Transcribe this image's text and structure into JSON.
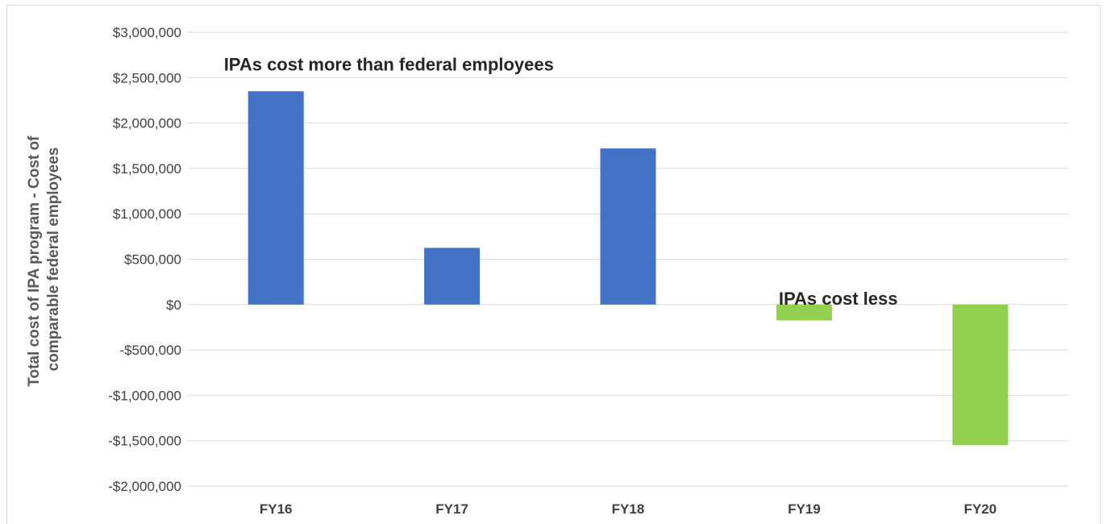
{
  "chart_data": {
    "type": "bar",
    "categories": [
      "FY16",
      "FY17",
      "FY18",
      "FY19",
      "FY20"
    ],
    "values": [
      2350000,
      625000,
      1720000,
      -175000,
      -1550000
    ],
    "ylim": [
      -2000000,
      3000000
    ],
    "yticks": [
      3000000,
      2500000,
      2000000,
      1500000,
      1000000,
      500000,
      0,
      -500000,
      -1000000,
      -1500000,
      -2000000
    ],
    "ytick_labels": [
      "$3,000,000",
      "$2,500,000",
      "$2,000,000",
      "$1,500,000",
      "$1,000,000",
      "$500,000",
      "$0",
      "-$500,000",
      "-$1,000,000",
      "-$1,500,000",
      "-$2,000,000"
    ],
    "ylabel_lines": [
      "Total cost of IPA program - Cost of",
      "comparable  federal employees"
    ],
    "xlabel": "",
    "grid": true,
    "colors": {
      "positive": "#4472c4",
      "negative": "#92d050",
      "grid": "#d9d9d9",
      "text": "#404040"
    },
    "annotations": [
      {
        "text": "IPAs cost more than federal employees",
        "x": "FY16",
        "y": 2650000,
        "anchor": "start"
      },
      {
        "text": "IPAs cost less",
        "x": "FY19",
        "y": 70000,
        "anchor": "start"
      }
    ]
  }
}
